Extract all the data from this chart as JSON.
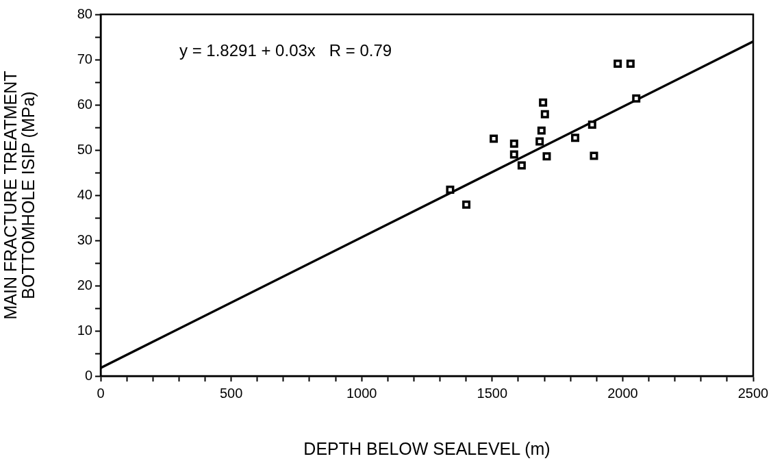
{
  "chart_data": {
    "type": "scatter",
    "xlabel": "DEPTH BELOW SEALEVEL (m)",
    "ylabel": "MAIN FRACTURE TREATMENT\nBOTTOMHOLE ISIP (MPa)",
    "annotations": [
      "y = 1.8291 + 0.03x   R = 0.79"
    ],
    "x": [
      1981,
      2030,
      2052,
      1695,
      1702,
      1883,
      1689,
      1506,
      1818,
      1584,
      1682,
      1584,
      1709,
      1890,
      1613,
      1339,
      1401
    ],
    "series": [
      {
        "color": "#000000",
        "marker": "square",
        "values": [
          69.1,
          69.1,
          61.4,
          60.5,
          57.9,
          55.6,
          54.3,
          52.5,
          52.7,
          51.4,
          51.9,
          49.0,
          48.6,
          48.7,
          46.6,
          41.2,
          37.9
        ]
      },
      {
        "type": "line",
        "color": "#000000",
        "marker": "none",
        "line_style": "solid",
        "x": [
          0,
          2500
        ],
        "values": [
          1.8,
          74
        ]
      }
    ],
    "xlim": [
      0,
      2500
    ],
    "ylim": [
      0,
      80
    ],
    "xticks": [
      0,
      {
        "value": 100,
        "label": null
      },
      {
        "value": 200,
        "label": null
      },
      {
        "value": 300,
        "label": null
      },
      {
        "value": 400,
        "label": null
      },
      500,
      {
        "value": 600,
        "label": null
      },
      {
        "value": 700,
        "label": null
      },
      {
        "value": 800,
        "label": null
      },
      {
        "value": 900,
        "label": null
      },
      1000,
      {
        "value": 1100,
        "label": null
      },
      {
        "value": 1200,
        "label": null
      },
      {
        "value": 1300,
        "label": null
      },
      {
        "value": 1400,
        "label": null
      },
      1500,
      {
        "value": 1600,
        "label": null
      },
      {
        "value": 1700,
        "label": null
      },
      {
        "value": 1800,
        "label": null
      },
      {
        "value": 1900,
        "label": null
      },
      2000,
      {
        "value": 2100,
        "label": null
      },
      {
        "value": 2200,
        "label": null
      },
      {
        "value": 2300,
        "label": null
      },
      {
        "value": 2400,
        "label": null
      },
      2500
    ],
    "yticks": [
      0,
      {
        "value": 5,
        "label": null
      },
      10,
      {
        "value": 15,
        "label": null
      },
      20,
      {
        "value": 25,
        "label": null
      },
      30,
      {
        "value": 35,
        "label": null
      },
      40,
      {
        "value": 45,
        "label": null
      },
      50,
      {
        "value": 55,
        "label": null
      },
      60,
      {
        "value": 65,
        "label": null
      },
      70,
      {
        "value": 75,
        "label": null
      },
      80
    ],
    "grid": false,
    "legend": false
  }
}
